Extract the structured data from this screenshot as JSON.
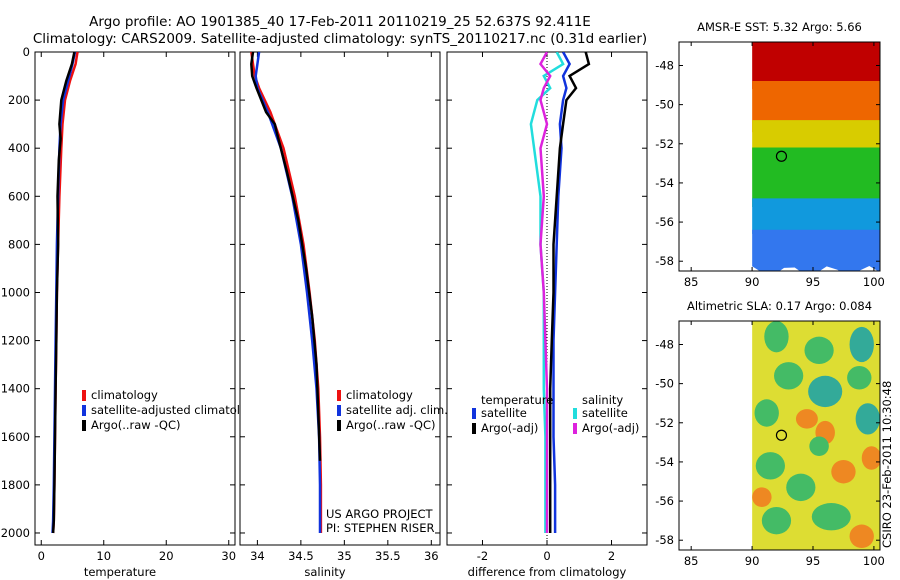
{
  "header": {
    "line1": "Argo profile: AO 1901385_40 17-Feb-2011 20110219_25 52.637S 92.411E",
    "line2": "Climatology: CARS2009. Satellite-adjusted climatology: synTS_20110217.nc (0.31d earlier)"
  },
  "colors": {
    "climatology": "#ee1111",
    "satellite": "#1133dd",
    "argo": "#000000",
    "salinity_satellite": "#22dddd",
    "salinity_argo": "#dd22dd"
  },
  "credit": {
    "project": "US ARGO PROJECT",
    "pi": "PI: STEPHEN RISER"
  },
  "signature": "CSIRO 23-Feb-2011 10:30:48",
  "chart_data": [
    {
      "type": "line",
      "id": "temperature",
      "xlabel": "temperature",
      "ylabel": "",
      "xlim": [
        -1,
        31
      ],
      "ylim": [
        2050,
        0
      ],
      "xticks": [
        0,
        10,
        20,
        30
      ],
      "yticks": [
        0,
        200,
        400,
        600,
        800,
        1000,
        1200,
        1400,
        1600,
        1800,
        2000
      ],
      "legend": [
        "climatology",
        "satellite-adjusted climatolo",
        "Argo(..raw -QC)"
      ],
      "series": [
        {
          "name": "climatology",
          "color": "#ee1111",
          "x": [
            5.8,
            5.5,
            4.6,
            3.8,
            3.4,
            3.2,
            2.9,
            2.7,
            2.5,
            2.4,
            2.3,
            2.2,
            2.1,
            2.0,
            1.9
          ],
          "y": [
            0,
            50,
            120,
            200,
            300,
            400,
            600,
            800,
            1000,
            1200,
            1400,
            1600,
            1800,
            1950,
            2000
          ]
        },
        {
          "name": "satellite-adjusted climatolo",
          "color": "#1133dd",
          "x": [
            5.4,
            5.0,
            4.3,
            3.5,
            3.1,
            2.9,
            2.7,
            2.5,
            2.4,
            2.3,
            2.2,
            2.1,
            2.0,
            1.9,
            1.8
          ],
          "y": [
            0,
            50,
            120,
            200,
            300,
            400,
            600,
            800,
            1000,
            1200,
            1400,
            1600,
            1800,
            1950,
            2000
          ]
        },
        {
          "name": "Argo(..raw -QC)",
          "color": "#000000",
          "x": [
            5.3,
            4.9,
            4.0,
            3.2,
            2.9,
            3.1,
            2.8,
            2.6,
            2.7,
            2.5,
            2.4,
            2.3,
            2.2,
            2.1,
            2.0,
            1.9
          ],
          "y": [
            0,
            50,
            120,
            200,
            300,
            360,
            450,
            600,
            800,
            1000,
            1200,
            1400,
            1600,
            1800,
            1950,
            2000
          ]
        }
      ]
    },
    {
      "type": "line",
      "id": "salinity",
      "xlabel": "salinity",
      "xlim": [
        33.8,
        36.1
      ],
      "ylim": [
        2050,
        0
      ],
      "xticks": [
        34,
        34.5,
        35,
        35.5,
        36
      ],
      "legend": [
        "climatology",
        "satellite adj. clim.",
        "Argo(..raw -QC)"
      ],
      "series": [
        {
          "name": "climatology",
          "color": "#ee1111",
          "x": [
            33.93,
            33.95,
            33.97,
            34.02,
            34.15,
            34.3,
            34.43,
            34.53,
            34.6,
            34.66,
            34.7,
            34.72,
            34.73,
            34.73
          ],
          "y": [
            0,
            50,
            100,
            150,
            250,
            400,
            600,
            800,
            1000,
            1200,
            1400,
            1600,
            1800,
            2000
          ]
        },
        {
          "name": "satellite adj. clim.",
          "color": "#1133dd",
          "x": [
            34.02,
            34.0,
            33.98,
            34.0,
            34.12,
            34.27,
            34.4,
            34.5,
            34.57,
            34.63,
            34.68,
            34.71,
            34.72,
            34.72
          ],
          "y": [
            0,
            50,
            100,
            150,
            250,
            400,
            600,
            800,
            1000,
            1200,
            1400,
            1600,
            1800,
            2000
          ]
        },
        {
          "name": "Argo(..raw -QC)",
          "color": "#000000",
          "x": [
            33.95,
            33.93,
            33.94,
            33.99,
            34.1,
            34.2,
            34.22,
            34.34,
            34.47,
            34.56,
            34.63,
            34.68,
            34.7,
            34.72
          ],
          "y": [
            0,
            50,
            100,
            150,
            250,
            300,
            330,
            500,
            700,
            900,
            1100,
            1300,
            1500,
            1700
          ]
        }
      ]
    },
    {
      "type": "line",
      "id": "difference",
      "xlabel": "difference from climatology",
      "xlim": [
        -3.1,
        3.1
      ],
      "ylim": [
        2050,
        0
      ],
      "xticks": [
        -2,
        0,
        2
      ],
      "legend_groups": [
        {
          "title": "temperature",
          "entries": [
            "satellite",
            "Argo(-adj)"
          ]
        },
        {
          "title": "salinity",
          "entries": [
            "satellite",
            "Argo(-adj)"
          ]
        }
      ],
      "series": [
        {
          "name": "temperature satellite",
          "color": "#1133dd",
          "x": [
            0.5,
            0.7,
            0.5,
            0.6,
            0.5,
            0.4,
            0.45,
            0.35,
            0.3,
            0.25,
            0.2,
            0.2,
            0.2,
            0.25,
            0.25
          ],
          "y": [
            0,
            50,
            100,
            150,
            200,
            300,
            400,
            600,
            800,
            1000,
            1200,
            1400,
            1600,
            1800,
            2000
          ]
        },
        {
          "name": "temperature Argo(-adj)",
          "color": "#000000",
          "x": [
            1.2,
            1.3,
            0.7,
            0.9,
            0.6,
            0.5,
            0.4,
            0.3,
            0.2,
            0.2,
            0.15,
            0.1,
            0.1,
            0.1,
            0.1
          ],
          "y": [
            0,
            50,
            100,
            150,
            200,
            300,
            400,
            600,
            800,
            1000,
            1200,
            1400,
            1600,
            1800,
            2000
          ]
        },
        {
          "name": "salinity satellite",
          "color": "#22dddd",
          "x": [
            0.3,
            0.5,
            -0.1,
            0.1,
            -0.3,
            -0.5,
            -0.4,
            -0.2,
            -0.2,
            -0.1,
            -0.1,
            -0.1,
            -0.05,
            -0.05,
            -0.05
          ],
          "y": [
            0,
            50,
            100,
            150,
            200,
            300,
            400,
            600,
            800,
            1000,
            1200,
            1400,
            1600,
            1800,
            2000
          ]
        },
        {
          "name": "salinity Argo(-adj)",
          "color": "#dd22dd",
          "x": [
            0.0,
            -0.2,
            0.1,
            -0.1,
            -0.2,
            0.0,
            -0.2,
            -0.1,
            -0.2,
            -0.1,
            -0.05,
            0.0,
            0.0,
            0.0,
            0.0
          ],
          "y": [
            0,
            50,
            100,
            150,
            200,
            300,
            400,
            600,
            800,
            1000,
            1200,
            1400,
            1600,
            1800,
            2000
          ]
        }
      ]
    },
    {
      "type": "heatmap",
      "id": "sst_map",
      "title": "AMSR-E SST: 5.32 Argo: 5.66",
      "xlim": [
        84,
        100.5
      ],
      "ylim": [
        -58.5,
        -46.8
      ],
      "xticks": [
        85,
        90,
        95,
        100
      ],
      "yticks": [
        -48,
        -50,
        -52,
        -54,
        -56,
        -58
      ],
      "data_lon_range": [
        90,
        100.5
      ],
      "argo_position": {
        "lon": 92.411,
        "lat": -52.637
      },
      "bands": [
        {
          "lat_from": -46.8,
          "lat_to": -49.2,
          "color": "#c00000"
        },
        {
          "lat_from": -49.2,
          "lat_to": -51.2,
          "color": "#ee6600"
        },
        {
          "lat_from": -51.2,
          "lat_to": -52.6,
          "color": "#d8cc00"
        },
        {
          "lat_from": -52.6,
          "lat_to": -55.2,
          "color": "#22bb22"
        },
        {
          "lat_from": -55.2,
          "lat_to": -56.8,
          "color": "#1199dd"
        },
        {
          "lat_from": -56.8,
          "lat_to": -58.5,
          "color": "#3377ee"
        }
      ]
    },
    {
      "type": "heatmap",
      "id": "sla_map",
      "title": "Altimetric SLA: 0.17 Argo: 0.084",
      "xlim": [
        84,
        100.5
      ],
      "ylim": [
        -58.5,
        -46.8
      ],
      "xticks": [
        85,
        90,
        95,
        100
      ],
      "yticks": [
        -48,
        -50,
        -52,
        -54,
        -56,
        -58
      ],
      "data_lon_range": [
        90,
        100.5
      ],
      "argo_position": {
        "lon": 92.411,
        "lat": -52.637
      },
      "background_color": "#dddd33",
      "blobs": [
        {
          "lon": 92.0,
          "lat": -47.6,
          "rlon": 1.0,
          "rlat": 0.8,
          "color": "#44bb66"
        },
        {
          "lon": 95.5,
          "lat": -48.3,
          "rlon": 1.2,
          "rlat": 0.7,
          "color": "#44bb66"
        },
        {
          "lon": 99.0,
          "lat": -48.0,
          "rlon": 1.0,
          "rlat": 0.9,
          "color": "#33aa99"
        },
        {
          "lon": 93.0,
          "lat": -49.6,
          "rlon": 1.2,
          "rlat": 0.7,
          "color": "#44bb66"
        },
        {
          "lon": 96.0,
          "lat": -50.4,
          "rlon": 1.4,
          "rlat": 0.8,
          "color": "#33aa99"
        },
        {
          "lon": 98.8,
          "lat": -49.7,
          "rlon": 1.0,
          "rlat": 0.6,
          "color": "#44bb66"
        },
        {
          "lon": 91.2,
          "lat": -51.5,
          "rlon": 1.0,
          "rlat": 0.7,
          "color": "#44bb66"
        },
        {
          "lon": 94.5,
          "lat": -51.8,
          "rlon": 0.9,
          "rlat": 0.5,
          "color": "#ee8822"
        },
        {
          "lon": 96.0,
          "lat": -52.5,
          "rlon": 0.8,
          "rlat": 0.6,
          "color": "#ee8822"
        },
        {
          "lon": 95.5,
          "lat": -53.2,
          "rlon": 0.8,
          "rlat": 0.5,
          "color": "#44bb66"
        },
        {
          "lon": 99.5,
          "lat": -51.8,
          "rlon": 1.0,
          "rlat": 0.8,
          "color": "#33aa99"
        },
        {
          "lon": 91.5,
          "lat": -54.2,
          "rlon": 1.2,
          "rlat": 0.7,
          "color": "#44bb66"
        },
        {
          "lon": 94.0,
          "lat": -55.3,
          "rlon": 1.2,
          "rlat": 0.7,
          "color": "#44bb66"
        },
        {
          "lon": 97.5,
          "lat": -54.5,
          "rlon": 1.0,
          "rlat": 0.6,
          "color": "#ee8822"
        },
        {
          "lon": 99.8,
          "lat": -53.8,
          "rlon": 0.8,
          "rlat": 0.6,
          "color": "#ee8822"
        },
        {
          "lon": 92.0,
          "lat": -57.0,
          "rlon": 1.2,
          "rlat": 0.7,
          "color": "#44bb66"
        },
        {
          "lon": 96.5,
          "lat": -56.8,
          "rlon": 1.6,
          "rlat": 0.7,
          "color": "#44bb66"
        },
        {
          "lon": 99.0,
          "lat": -57.8,
          "rlon": 1.0,
          "rlat": 0.6,
          "color": "#ee8822"
        },
        {
          "lon": 90.8,
          "lat": -55.8,
          "rlon": 0.8,
          "rlat": 0.5,
          "color": "#ee8822"
        }
      ]
    }
  ]
}
